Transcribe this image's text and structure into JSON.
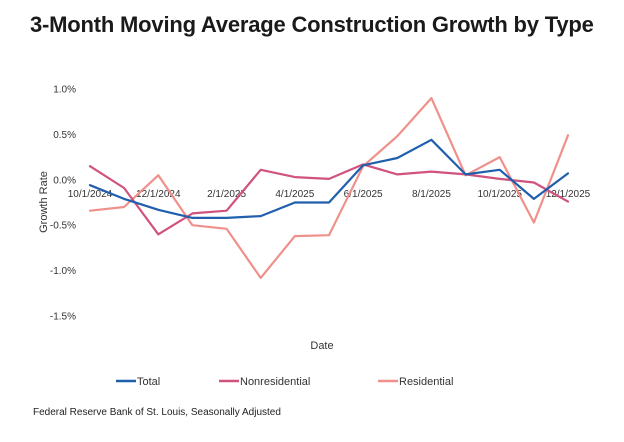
{
  "chart_data": {
    "type": "line",
    "title": "3-Month Moving Average Construction Growth by Type",
    "xlabel": "Date",
    "ylabel": "Growth Rate",
    "source": "Federal Reserve Bank of St. Louis, Seasonally Adjusted",
    "ylim": [
      -0.015,
      0.01
    ],
    "yticks": [
      0.01,
      0.005,
      0.0,
      -0.005,
      -0.01,
      -0.015
    ],
    "ytick_labels": [
      "1.0%",
      "0.5%",
      "0.0%",
      "-0.5%",
      "-1.0%",
      "-1.5%"
    ],
    "x": [
      "10/1/2024",
      "11/1/2024",
      "12/1/2024",
      "1/1/2025",
      "2/1/2025",
      "3/1/2025",
      "4/1/2025",
      "5/1/2025",
      "6/1/2025",
      "7/1/2025",
      "8/1/2025",
      "9/1/2025",
      "10/1/2025",
      "11/1/2025",
      "12/1/2025"
    ],
    "xtick_labels": [
      "10/1/2024",
      "12/1/2024",
      "2/1/2025",
      "4/1/2025",
      "6/1/2025",
      "8/1/2025",
      "10/1/2025",
      "12/1/2025"
    ],
    "xtick_indices": [
      0,
      2,
      4,
      6,
      8,
      10,
      12,
      14
    ],
    "grid": false,
    "legend_position": "bottom",
    "series": [
      {
        "name": "Total",
        "color": "#1f5fad",
        "values": [
          -0.0006,
          -0.0021,
          -0.0033,
          -0.0042,
          -0.0042,
          -0.004,
          -0.0025,
          -0.0025,
          0.0016,
          0.0024,
          0.0044,
          0.0006,
          0.0011,
          -0.0021,
          0.0007
        ]
      },
      {
        "name": "Nonresidential",
        "color": "#d0527f",
        "values": [
          0.0015,
          -0.0009,
          -0.006,
          -0.0037,
          -0.0034,
          0.0011,
          0.0003,
          0.0001,
          0.0017,
          0.0006,
          0.0009,
          0.0006,
          0.0001,
          -0.0003,
          -0.0024
        ]
      },
      {
        "name": "Residential",
        "color": "#f0908a",
        "values": [
          -0.0034,
          -0.003,
          0.0005,
          -0.005,
          -0.0054,
          -0.0108,
          -0.0062,
          -0.0061,
          0.0015,
          0.0048,
          0.009,
          0.0005,
          0.0025,
          -0.0047,
          0.0049
        ]
      }
    ]
  }
}
